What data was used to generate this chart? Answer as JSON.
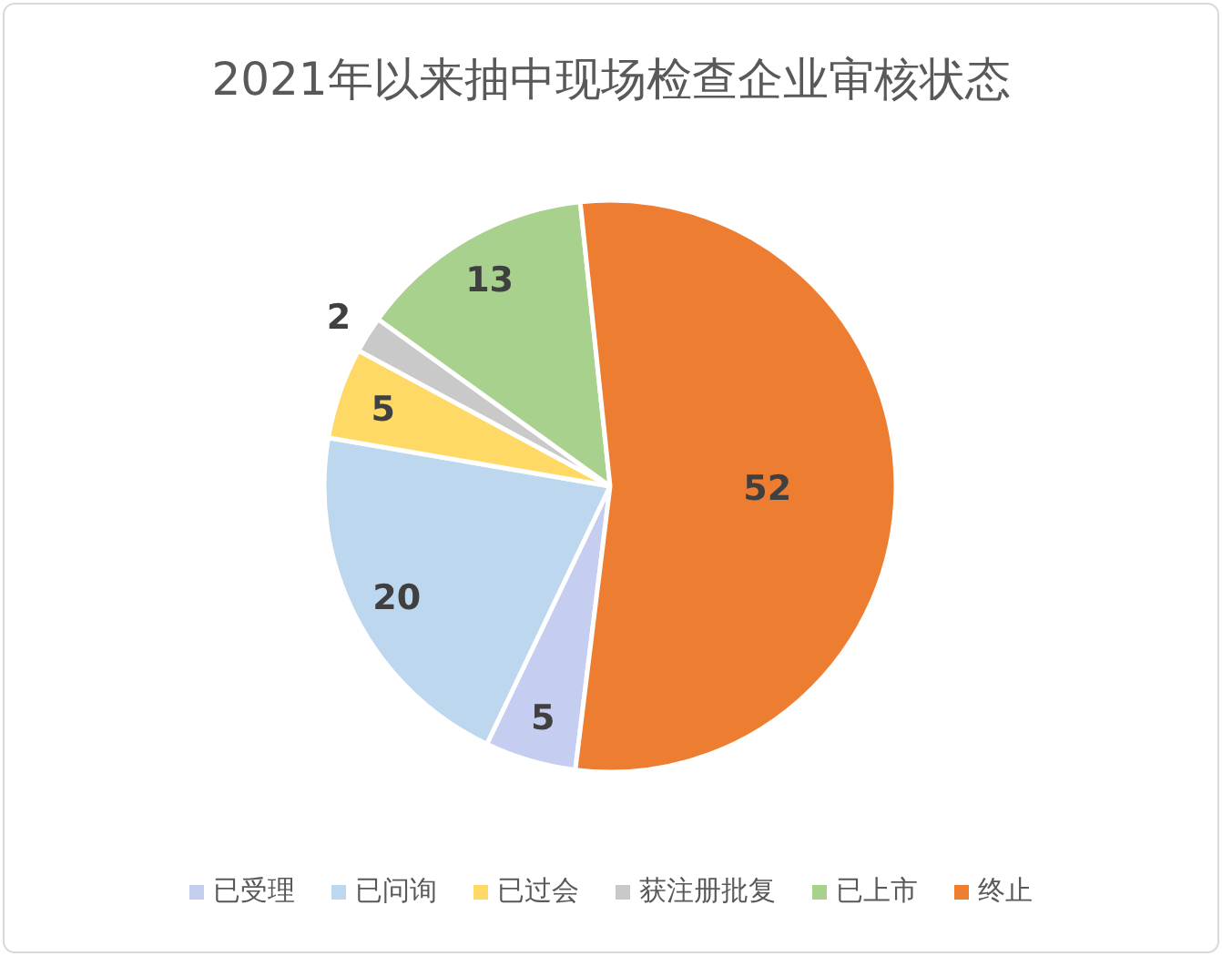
{
  "chart_data": {
    "type": "pie",
    "title": "2021年以来抽中现场检查企业审核状态",
    "categories": [
      "已受理",
      "已问询",
      "已过会",
      "获注册批复",
      "已上市",
      "终止"
    ],
    "values": [
      5,
      20,
      5,
      2,
      13,
      52
    ],
    "colors": [
      "#c5cdf0",
      "#bdd7ee",
      "#ffd966",
      "#c9c9c9",
      "#a9d18e",
      "#ed7d31"
    ],
    "data_labels": true,
    "legend": "bottom"
  }
}
